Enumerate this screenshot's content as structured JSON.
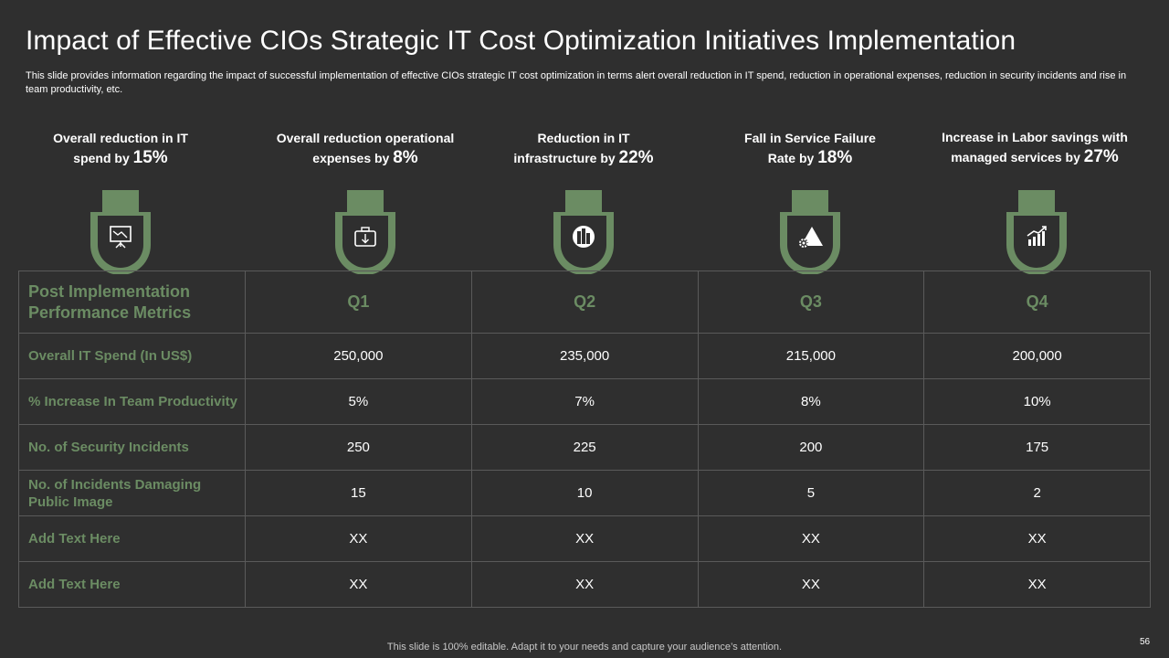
{
  "title": "Impact of Effective CIOs Strategic IT Cost Optimization Initiatives Implementation",
  "subtitle": "This slide provides information regarding the impact of successful implementation of effective CIOs strategic IT cost optimization in terms alert overall reduction in IT spend, reduction in operational expenses, reduction in security incidents and rise in team productivity, etc.",
  "kpis": [
    {
      "line1": "Overall reduction in IT",
      "line2": "spend by ",
      "pct": "15%",
      "icon": "presentation-chart-icon"
    },
    {
      "line1": "Overall reduction operational",
      "line2": "expenses by ",
      "pct": "8%",
      "icon": "briefcase-down-arrow-icon"
    },
    {
      "line1": "Reduction in IT",
      "line2": "infrastructure by ",
      "pct": "22%",
      "icon": "city-buildings-icon"
    },
    {
      "line1": "Fall in Service Failure",
      "line2": "Rate by ",
      "pct": "18%",
      "icon": "gear-triangle-icon"
    },
    {
      "line1": "Increase in Labor",
      "line1b": "savings with managed",
      "line2": "services by ",
      "pct": "27%",
      "icon": "growth-chart-gears-icon"
    }
  ],
  "colors": {
    "accent": "#6b8c63",
    "background": "#2f2f2f",
    "border": "#5a5a5a"
  },
  "table": {
    "header": {
      "label": "Post Implementation Performance Metrics",
      "quarters": [
        "Q1",
        "Q2",
        "Q3",
        "Q4"
      ]
    },
    "rows": [
      {
        "label": "Overall IT Spend (In US$)",
        "values": [
          "250,000",
          "235,000",
          "215,000",
          "200,000"
        ]
      },
      {
        "label": "% Increase In Team Productivity",
        "values": [
          "5%",
          "7%",
          "8%",
          "10%"
        ]
      },
      {
        "label": "No. of Security Incidents",
        "values": [
          "250",
          "225",
          "200",
          "175"
        ]
      },
      {
        "label": "No. of Incidents Damaging Public Image",
        "values": [
          "15",
          "10",
          "5",
          "2"
        ]
      },
      {
        "label": "Add Text Here",
        "values": [
          "XX",
          "XX",
          "XX",
          "XX"
        ]
      },
      {
        "label": "Add Text Here",
        "values": [
          "XX",
          "XX",
          "XX",
          "XX"
        ]
      }
    ]
  },
  "footer": "This slide is 100% editable. Adapt it to your needs and capture your audience’s attention.",
  "page_number": "56"
}
